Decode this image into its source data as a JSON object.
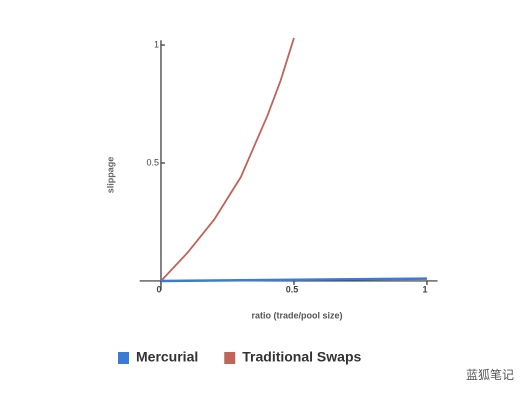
{
  "chart_data": {
    "type": "line",
    "xlabel": "ratio (trade/pool size)",
    "ylabel": "slippage",
    "series": [
      {
        "name": "Mercurial",
        "color": "#3a7bd5",
        "x": [
          0,
          1
        ],
        "values": [
          0,
          0.01
        ]
      },
      {
        "name": "Traditional Swaps",
        "color": "#c0645a",
        "x": [
          0,
          0.1,
          0.2,
          0.3,
          0.4,
          0.45,
          0.5
        ],
        "values": [
          0,
          0.12,
          0.26,
          0.44,
          0.7,
          0.85,
          1.03
        ]
      }
    ],
    "xlim": [
      -0.08,
      1.04
    ],
    "xticks": [
      0,
      0.5,
      1
    ],
    "ylim": [
      -0.04,
      1.02
    ],
    "yticks": [
      0.5,
      1
    ],
    "legend": "bottom",
    "watermark": "蓝狐笔记"
  }
}
